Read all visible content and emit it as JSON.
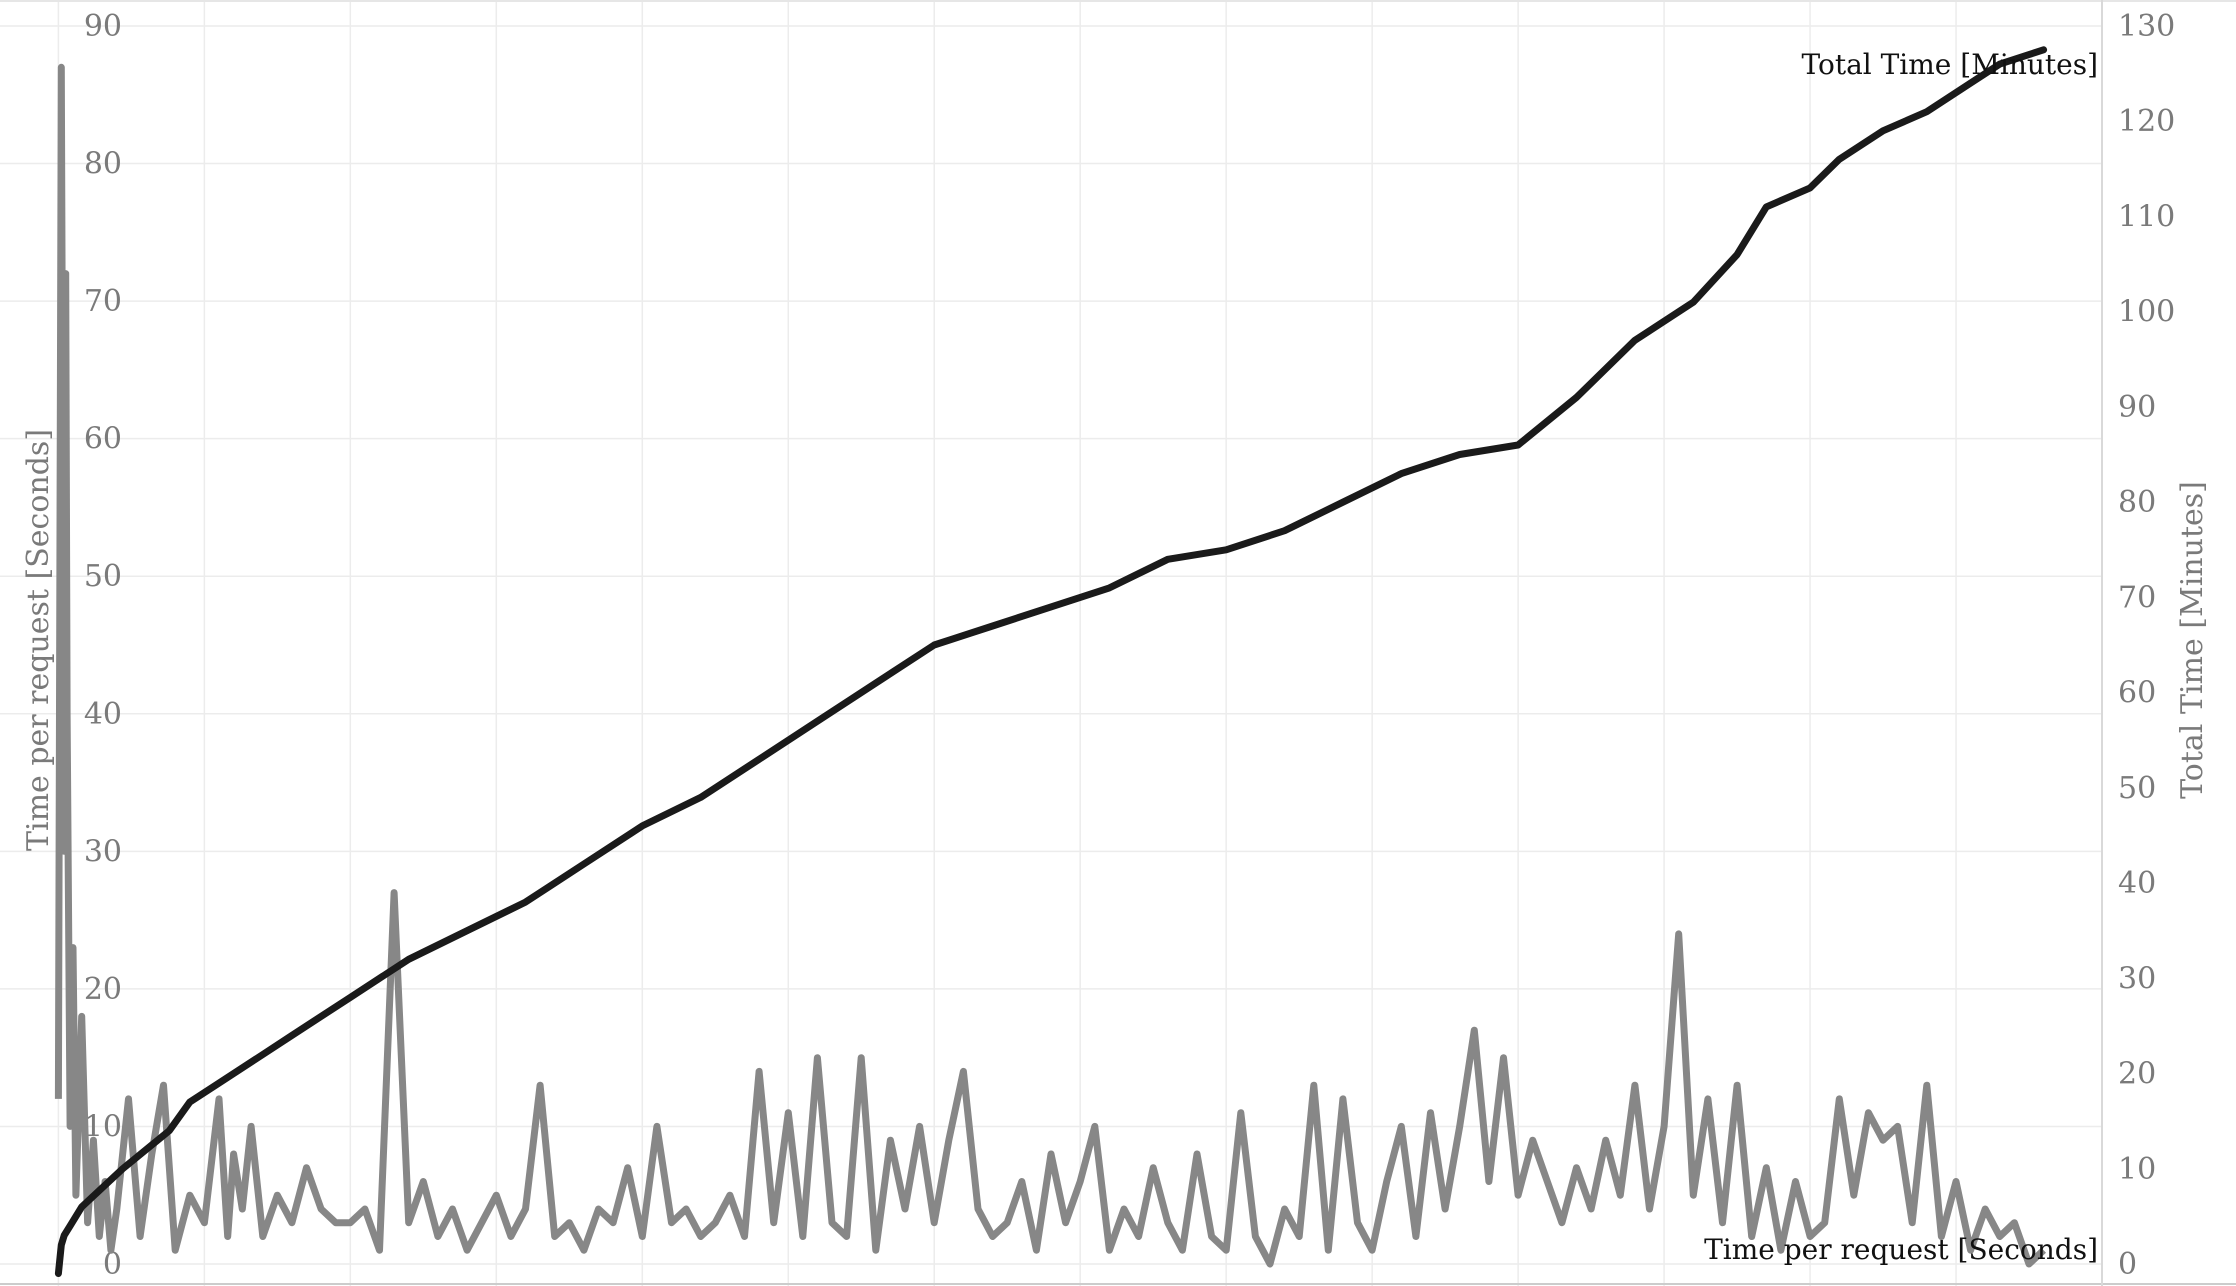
{
  "chart_data": {
    "type": "line",
    "xlabel": "",
    "ylabel_left": "Time per request [Seconds]",
    "ylabel_right": "Total Time [Minutes]",
    "ylim_left": [
      0,
      90
    ],
    "ylim_right": [
      0,
      130
    ],
    "yticks_left": [
      0,
      10,
      20,
      30,
      40,
      50,
      60,
      70,
      80,
      90
    ],
    "yticks_right": [
      0,
      10,
      20,
      30,
      40,
      50,
      60,
      70,
      80,
      90,
      100,
      110,
      120,
      130
    ],
    "xlim": [
      -20,
      700
    ],
    "grid": true,
    "series": [
      {
        "name": "Total Time [Minutes]",
        "axis": "right",
        "color": "#1a1a1a",
        "x": [
          0,
          1,
          2,
          4,
          8,
          15,
          22,
          30,
          38,
          45,
          55,
          70,
          80,
          100,
          120,
          140,
          160,
          180,
          200,
          220,
          240,
          260,
          280,
          300,
          320,
          340,
          360,
          380,
          400,
          420,
          440,
          460,
          480,
          500,
          520,
          540,
          560,
          575,
          585,
          600,
          610,
          625,
          640,
          655,
          665,
          675,
          680
        ],
        "y": [
          -1,
          2,
          3,
          4,
          6,
          8,
          10,
          12,
          14,
          17,
          19,
          22,
          24,
          28,
          32,
          35,
          38,
          42,
          46,
          49,
          53,
          57,
          61,
          65,
          67,
          69,
          71,
          74,
          75,
          77,
          80,
          83,
          85,
          86,
          91,
          97,
          101,
          106,
          111,
          113,
          116,
          119,
          121,
          124,
          126,
          127,
          127.5
        ]
      },
      {
        "name": "Time per request [Seconds]",
        "axis": "left",
        "color": "#878787",
        "x": [
          0,
          1,
          2,
          2.5,
          3,
          4,
          5,
          6,
          8,
          10,
          12,
          14,
          16,
          18,
          20,
          24,
          28,
          32,
          36,
          40,
          45,
          50,
          55,
          58,
          60,
          63,
          66,
          70,
          75,
          80,
          85,
          90,
          95,
          100,
          105,
          110,
          115,
          120,
          125,
          130,
          135,
          140,
          145,
          150,
          155,
          160,
          165,
          170,
          175,
          180,
          185,
          190,
          195,
          200,
          205,
          210,
          215,
          220,
          225,
          230,
          235,
          240,
          245,
          250,
          255,
          260,
          265,
          270,
          275,
          280,
          285,
          290,
          295,
          300,
          305,
          310,
          315,
          320,
          325,
          330,
          335,
          340,
          345,
          350,
          355,
          360,
          365,
          370,
          375,
          380,
          385,
          390,
          395,
          400,
          405,
          410,
          415,
          420,
          425,
          430,
          435,
          440,
          445,
          450,
          455,
          460,
          465,
          470,
          475,
          480,
          485,
          490,
          495,
          500,
          505,
          510,
          515,
          520,
          525,
          530,
          535,
          540,
          545,
          550,
          555,
          560,
          565,
          570,
          575,
          580,
          585,
          590,
          595,
          600,
          605,
          610,
          615,
          620,
          625,
          630,
          635,
          640,
          645,
          650,
          655,
          660,
          665,
          670,
          675,
          680
        ],
        "y": [
          12,
          87,
          30,
          72,
          40,
          10,
          23,
          5,
          18,
          3,
          9,
          2,
          6,
          1,
          4,
          12,
          2,
          8,
          13,
          1,
          5,
          3,
          12,
          2,
          8,
          4,
          10,
          2,
          5,
          3,
          7,
          4,
          3,
          3,
          4,
          1,
          27,
          3,
          6,
          2,
          4,
          1,
          3,
          5,
          2,
          4,
          13,
          2,
          3,
          1,
          4,
          3,
          7,
          2,
          10,
          3,
          4,
          2,
          3,
          5,
          2,
          14,
          3,
          11,
          2,
          15,
          3,
          2,
          15,
          1,
          9,
          4,
          10,
          3,
          9,
          14,
          4,
          2,
          3,
          6,
          1,
          8,
          3,
          6,
          10,
          1,
          4,
          2,
          7,
          3,
          1,
          8,
          2,
          1,
          11,
          2,
          0,
          4,
          2,
          13,
          1,
          12,
          3,
          1,
          6,
          10,
          2,
          11,
          4,
          10,
          17,
          6,
          15,
          5,
          9,
          6,
          3,
          7,
          4,
          9,
          5,
          13,
          4,
          10,
          24,
          5,
          12,
          3,
          13,
          2,
          7,
          1,
          6,
          2,
          3,
          12,
          5,
          11,
          9,
          10,
          3,
          13,
          2,
          6,
          1,
          4,
          2,
          3,
          0,
          1
        ]
      }
    ],
    "annotations": [
      {
        "text": "Total Time [Minutes]",
        "position": "top-right"
      },
      {
        "text": "Time per request [Seconds]",
        "position": "bottom-right"
      }
    ]
  }
}
